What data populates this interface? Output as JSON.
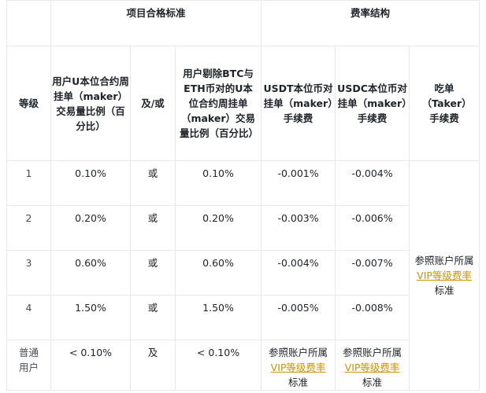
{
  "header": {
    "group_left": "项目合格标准",
    "group_right": "费率结构",
    "col_level": "等级",
    "col_u_ratio": "用户U本位合约周挂单（maker）交易量比例（百分比）",
    "col_andor": "及/或",
    "col_u_ratio_ex": "用户剔除BTC与ETH币对的U本位合约周挂单（maker）交易量比例（百分比）",
    "col_usdt": "USDT本位币对挂单（maker）手续费",
    "col_usdc": "USDC本位币对挂单（maker）手续费",
    "col_taker": "吃单（Taker）手续费"
  },
  "rows": [
    {
      "level": "1",
      "u_ratio": "0.10%",
      "andor": "或",
      "u_ratio_ex": "0.10%",
      "usdt": "-0.001%",
      "usdc": "-0.004%"
    },
    {
      "level": "2",
      "u_ratio": "0.20%",
      "andor": "或",
      "u_ratio_ex": "0.20%",
      "usdt": "-0.003%",
      "usdc": "-0.006%"
    },
    {
      "level": "3",
      "u_ratio": "0.60%",
      "andor": "或",
      "u_ratio_ex": "0.60%",
      "usdt": "-0.004%",
      "usdc": "-0.007%"
    },
    {
      "level": "4",
      "u_ratio": "1.50%",
      "andor": "或",
      "u_ratio_ex": "1.50%",
      "usdt": "-0.005%",
      "usdc": "-0.008%"
    },
    {
      "level": "普通用户",
      "u_ratio": "< 0.10%",
      "andor": "及",
      "u_ratio_ex": "< 0.10%"
    }
  ],
  "ref": {
    "prefix": "参照账户所属",
    "link": "VIP等级费率",
    "suffix": "标准"
  },
  "colors": {
    "link": "#c99400",
    "border": "#e6e8ea",
    "text": "#1e2329"
  }
}
